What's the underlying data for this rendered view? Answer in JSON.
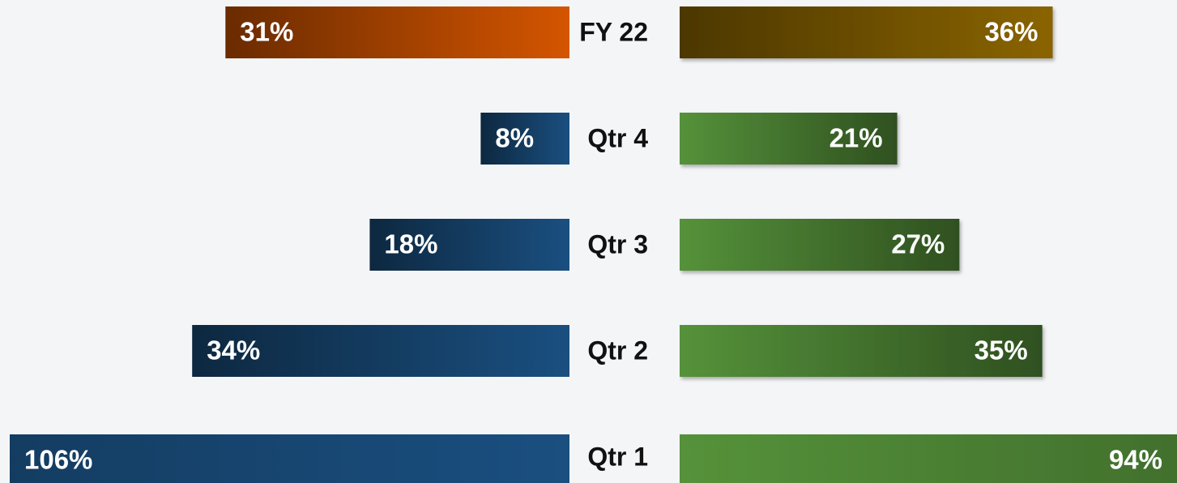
{
  "chart_data": {
    "type": "butterfly",
    "categories": [
      "FY 22",
      "Qtr 4",
      "Qtr 3",
      "Qtr 2",
      "Qtr 1"
    ],
    "series": [
      {
        "side": "left",
        "colors": [
          "#d45500",
          "#1a4f80",
          "#1a4f80",
          "#1a4f80",
          "#1a4f80"
        ],
        "values": [
          31,
          8,
          18,
          34,
          106
        ],
        "value_labels": [
          "31%",
          "8%",
          "18%",
          "34%",
          "106%"
        ],
        "xlim": [
          0,
          50
        ]
      },
      {
        "side": "right",
        "colors": [
          "#8a6400",
          "#55923a",
          "#55923a",
          "#55923a",
          "#55923a"
        ],
        "values": [
          36,
          21,
          27,
          35,
          94
        ],
        "value_labels": [
          "36%",
          "21%",
          "27%",
          "35%",
          "94%"
        ],
        "xlim": [
          0,
          48
        ]
      }
    ]
  }
}
